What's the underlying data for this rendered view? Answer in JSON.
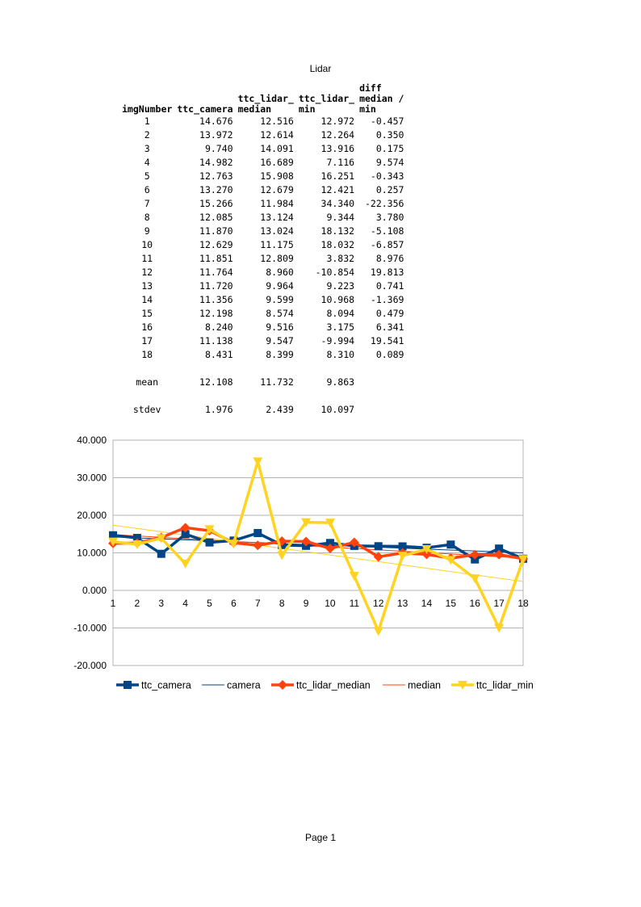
{
  "sheet_title": "Lidar",
  "table": {
    "headers": [
      "imgNumber",
      "ttc_camera",
      "ttc_lidar_\nmedian",
      "ttc_lidar_\nmin",
      "diff\nmedian /\nmin"
    ],
    "rows": [
      [
        "1",
        "14.676",
        "12.516",
        "12.972",
        "-0.457"
      ],
      [
        "2",
        "13.972",
        "12.614",
        "12.264",
        "0.350"
      ],
      [
        "3",
        "9.740",
        "14.091",
        "13.916",
        "0.175"
      ],
      [
        "4",
        "14.982",
        "16.689",
        "7.116",
        "9.574"
      ],
      [
        "5",
        "12.763",
        "15.908",
        "16.251",
        "-0.343"
      ],
      [
        "6",
        "13.270",
        "12.679",
        "12.421",
        "0.257"
      ],
      [
        "7",
        "15.266",
        "11.984",
        "34.340",
        "-22.356"
      ],
      [
        "8",
        "12.085",
        "13.124",
        "9.344",
        "3.780"
      ],
      [
        "9",
        "11.870",
        "13.024",
        "18.132",
        "-5.108"
      ],
      [
        "10",
        "12.629",
        "11.175",
        "18.032",
        "-6.857"
      ],
      [
        "11",
        "11.851",
        "12.809",
        "3.832",
        "8.976"
      ],
      [
        "12",
        "11.764",
        "8.960",
        "-10.854",
        "19.813"
      ],
      [
        "13",
        "11.720",
        "9.964",
        "9.223",
        "0.741"
      ],
      [
        "14",
        "11.356",
        "9.599",
        "10.968",
        "-1.369"
      ],
      [
        "15",
        "12.198",
        "8.574",
        "8.094",
        "0.479"
      ],
      [
        "16",
        "8.240",
        "9.516",
        "3.175",
        "6.341"
      ],
      [
        "17",
        "11.138",
        "9.547",
        "-9.994",
        "19.541"
      ],
      [
        "18",
        "8.431",
        "8.399",
        "8.310",
        "0.089"
      ]
    ],
    "summary": [
      [
        "mean",
        "12.108",
        "11.732",
        "9.863",
        ""
      ],
      [
        "stdev",
        "1.976",
        "2.439",
        "10.097",
        ""
      ]
    ]
  },
  "chart_data": {
    "type": "line",
    "x": [
      1,
      2,
      3,
      4,
      5,
      6,
      7,
      8,
      9,
      10,
      11,
      12,
      13,
      14,
      15,
      16,
      17,
      18
    ],
    "ylim": [
      -20,
      40
    ],
    "yticks": [
      "40.000",
      "30.000",
      "20.000",
      "10.000",
      "0.000",
      "-10.000",
      "-20.000"
    ],
    "grid": true,
    "legend_position": "bottom",
    "series": [
      {
        "name": "ttc_camera",
        "color": "#004586",
        "marker": "square",
        "values": [
          14.676,
          13.972,
          9.74,
          14.982,
          12.763,
          13.27,
          15.266,
          12.085,
          11.87,
          12.629,
          11.851,
          11.764,
          11.72,
          11.356,
          12.198,
          8.24,
          11.138,
          8.431
        ]
      },
      {
        "name": "ttc_lidar_median",
        "color": "#ff420e",
        "marker": "diamond",
        "values": [
          12.516,
          12.614,
          14.091,
          16.689,
          15.908,
          12.679,
          11.984,
          13.124,
          13.024,
          11.175,
          12.809,
          8.96,
          9.964,
          9.599,
          8.574,
          9.516,
          9.547,
          8.399
        ]
      },
      {
        "name": "ttc_lidar_min",
        "color": "#ffd320",
        "marker": "triangle-down",
        "values": [
          12.972,
          12.264,
          13.916,
          7.116,
          16.251,
          12.421,
          34.34,
          9.344,
          18.132,
          18.032,
          3.832,
          -10.854,
          9.223,
          10.968,
          8.094,
          3.175,
          -9.994,
          8.31
        ]
      }
    ],
    "trendlines": [
      {
        "name": "camera",
        "of": "ttc_camera",
        "color": "#004586"
      },
      {
        "name": "median",
        "of": "ttc_lidar_median",
        "color": "#ff420e"
      },
      {
        "name": "",
        "of": "ttc_lidar_min",
        "color": "#ffd320"
      }
    ]
  },
  "legend": [
    "ttc_camera",
    "camera",
    "ttc_lidar_median",
    "median",
    "ttc_lidar_min"
  ],
  "footer": "Page 1"
}
